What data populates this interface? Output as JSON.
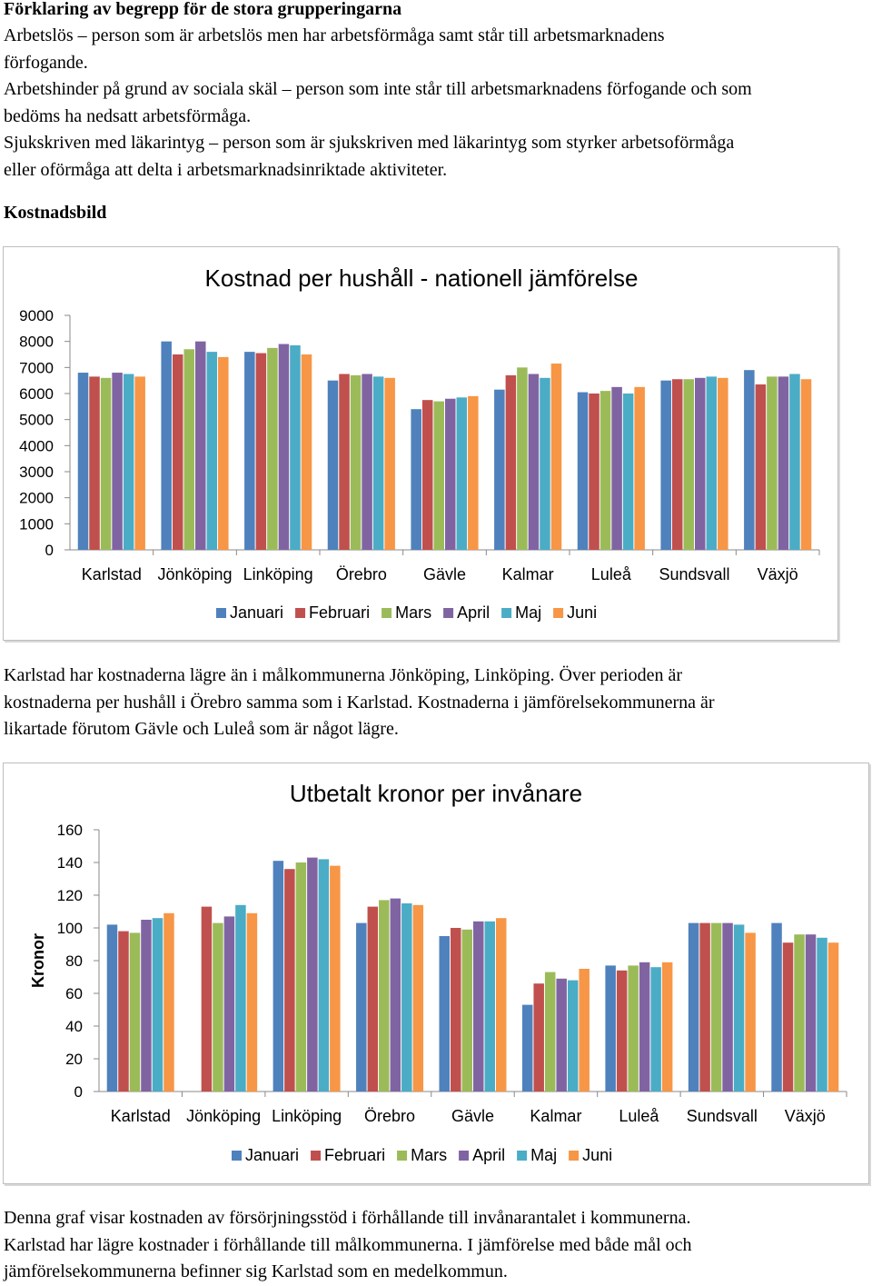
{
  "definitions": {
    "heading": "Förklaring av begrepp för de stora grupperingarna",
    "lines": [
      "Arbetslös – person som är arbetslös men har arbetsförmåga samt står till arbetsmarknadens",
      "förfogande.",
      "Arbetshinder på grund av sociala skäl – person som inte står till arbetsmarknadens förfogande och som",
      "bedöms ha nedsatt arbetsförmåga.",
      "Sjukskriven med läkarintyg – person som är sjukskriven med läkarintyg som styrker arbetsoförmåga",
      "eller oförmåga att delta i arbetsmarknadsinriktade aktiviteter."
    ]
  },
  "section_heading": "Kostnadsbild",
  "paragraph1": [
    "Karlstad har kostnaderna lägre än i målkommunerna Jönköping, Linköping. Över perioden är",
    "kostnaderna per hushåll i Örebro samma som i Karlstad. Kostnaderna i jämförelsekommunerna är",
    "likartade förutom Gävle och Luleå som är något lägre."
  ],
  "paragraph2": [
    "Denna graf visar kostnaden av försörjningsstöd i förhållande till invånarantalet i kommunerna.",
    "Karlstad har lägre kostnader i förhållande till målkommunerna. I jämförelse med både mål och",
    "jämförelsekommunerna befinner sig Karlstad som en medelkommun."
  ],
  "colors": {
    "Januari": "#4f81bd",
    "Februari": "#c0504d",
    "Mars": "#9bbb59",
    "April": "#8064a2",
    "Maj": "#4bacc6",
    "Juni": "#f79646"
  },
  "chart_data": [
    {
      "type": "bar",
      "title": "Kostnad per hushåll - nationell jämförelse",
      "xlabel": "",
      "ylabel": "",
      "ylim": [
        0,
        9000
      ],
      "yticks": [
        "0",
        "1000",
        "2000",
        "3000",
        "4000",
        "5000",
        "6000",
        "7000",
        "8000",
        "9000"
      ],
      "grid": false,
      "legend": "bottom",
      "categories": [
        "Karlstad",
        "Jönköping",
        "Linköping",
        "Örebro",
        "Gävle",
        "Kalmar",
        "Luleå",
        "Sundsvall",
        "Växjö"
      ],
      "series": [
        {
          "name": "Januari",
          "values": [
            6800,
            8000,
            7600,
            6500,
            5400,
            6150,
            6050,
            6500,
            6900
          ]
        },
        {
          "name": "Februari",
          "values": [
            6650,
            7500,
            7550,
            6750,
            5750,
            6700,
            6000,
            6550,
            6350
          ]
        },
        {
          "name": "Mars",
          "values": [
            6600,
            7700,
            7750,
            6700,
            5700,
            7000,
            6100,
            6550,
            6650
          ]
        },
        {
          "name": "April",
          "values": [
            6800,
            8000,
            7900,
            6750,
            5800,
            6750,
            6250,
            6600,
            6650
          ]
        },
        {
          "name": "Maj",
          "values": [
            6750,
            7600,
            7850,
            6650,
            5850,
            6600,
            6000,
            6650,
            6750
          ]
        },
        {
          "name": "Juni",
          "values": [
            6650,
            7400,
            7500,
            6600,
            5900,
            7150,
            6250,
            6600,
            6550
          ]
        }
      ]
    },
    {
      "type": "bar",
      "title": "Utbetalt kronor per invånare",
      "xlabel": "",
      "ylabel": "Kronor",
      "ylim": [
        0,
        160
      ],
      "yticks": [
        "0",
        "20",
        "40",
        "60",
        "80",
        "100",
        "120",
        "140",
        "160"
      ],
      "grid": false,
      "legend": "bottom",
      "categories": [
        "Karlstad",
        "Jönköping",
        "Linköping",
        "Örebro",
        "Gävle",
        "Kalmar",
        "Luleå",
        "Sundsvall",
        "Växjö"
      ],
      "series": [
        {
          "name": "Januari",
          "values": [
            102,
            null,
            141,
            103,
            95,
            53,
            77,
            103,
            103
          ]
        },
        {
          "name": "Februari",
          "values": [
            98,
            113,
            136,
            113,
            100,
            66,
            74,
            103,
            91
          ]
        },
        {
          "name": "Mars",
          "values": [
            97,
            103,
            140,
            117,
            99,
            73,
            77,
            103,
            96
          ]
        },
        {
          "name": "April",
          "values": [
            105,
            107,
            143,
            118,
            104,
            69,
            79,
            103,
            96
          ]
        },
        {
          "name": "Maj",
          "values": [
            106,
            114,
            142,
            115,
            104,
            68,
            76,
            102,
            94
          ]
        },
        {
          "name": "Juni",
          "values": [
            109,
            109,
            138,
            114,
            106,
            75,
            79,
            97,
            91
          ]
        }
      ]
    }
  ]
}
